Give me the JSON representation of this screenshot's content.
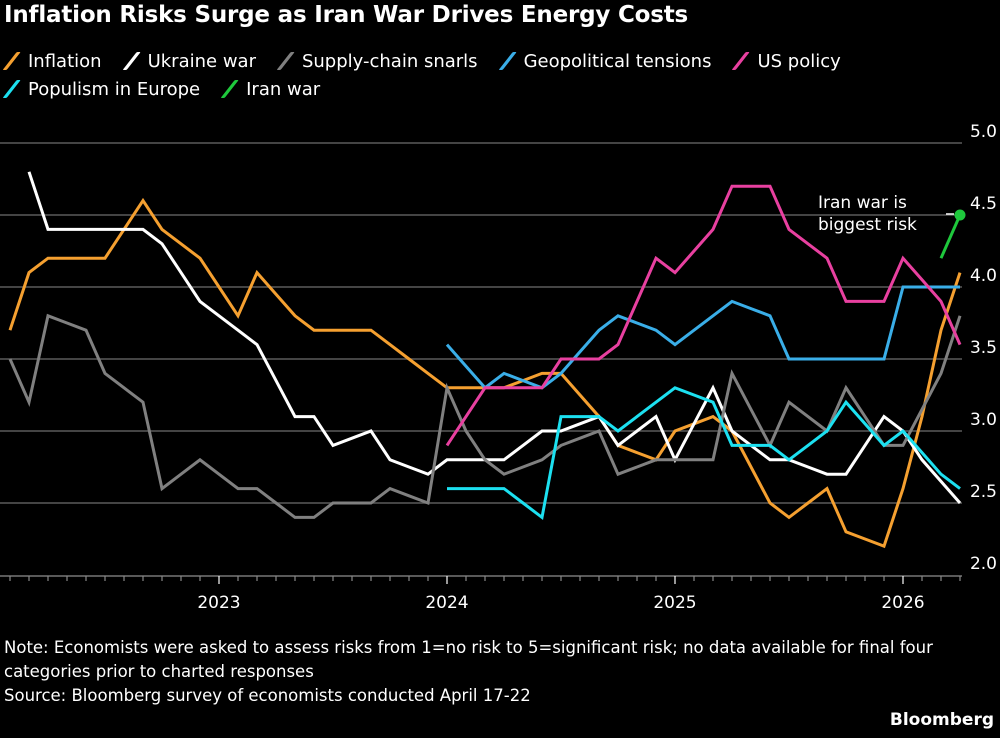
{
  "title": "Inflation Risks Surge as Iran War Drives Energy Costs",
  "note": "Note: Economists were asked to assess risks from 1=no risk to 5=significant risk; no data available for final four categories prior to charted responses",
  "source": "Source: Bloomberg survey of economists conducted April 17-22",
  "brand": "Bloomberg",
  "chart_data": {
    "type": "line",
    "title": "Inflation Risks Surge as Iran War Drives Energy Costs",
    "xlabel": "",
    "ylabel": "",
    "x_start": "2022-02",
    "x_end": "2026-04",
    "x_frequency": "monthly",
    "x_tick_labels": [
      "2023",
      "2024",
      "2025",
      "2026"
    ],
    "y_tick_labels": [
      "2.0",
      "2.5",
      "3.0",
      "3.5",
      "4.0",
      "4.5",
      "5.0"
    ],
    "ylim": [
      2.0,
      5.0
    ],
    "grid": true,
    "y_axis_side": "right",
    "legend_placement": "top",
    "annotation": {
      "text_line1": "Iran war is",
      "text_line2": "biggest risk"
    },
    "series": [
      {
        "name": "Inflation",
        "color": "#f5a030",
        "values": [
          3.7,
          4.1,
          4.2,
          4.2,
          4.2,
          4.2,
          4.4,
          4.6,
          4.4,
          4.3,
          4.2,
          4.0,
          3.8,
          4.1,
          3.95,
          3.8,
          3.7,
          3.7,
          3.7,
          3.7,
          3.6,
          3.5,
          3.4,
          3.3,
          3.3,
          3.3,
          3.3,
          3.35,
          3.4,
          3.4,
          3.25,
          3.1,
          2.9,
          2.85,
          2.8,
          3.0,
          3.05,
          3.1,
          3.0,
          2.75,
          2.5,
          2.4,
          2.5,
          2.6,
          2.3,
          2.25,
          2.2,
          2.6,
          3.1,
          3.7,
          4.1
        ]
      },
      {
        "name": "Ukraine war",
        "color": "#ffffff",
        "values": [
          null,
          4.8,
          4.4,
          4.4,
          4.4,
          4.4,
          4.4,
          4.4,
          4.3,
          4.1,
          3.9,
          3.8,
          3.7,
          3.6,
          3.35,
          3.1,
          3.1,
          2.9,
          2.95,
          3.0,
          2.8,
          2.75,
          2.7,
          2.8,
          2.8,
          2.8,
          2.8,
          2.9,
          3.0,
          3.0,
          3.05,
          3.1,
          2.9,
          3.0,
          3.1,
          2.8,
          3.05,
          3.3,
          3.0,
          2.9,
          2.8,
          2.8,
          2.75,
          2.7,
          2.7,
          2.9,
          3.1,
          3.0,
          2.8,
          2.65,
          2.5
        ]
      },
      {
        "name": "Supply-chain snarls",
        "color": "#808080",
        "values": [
          3.5,
          3.2,
          3.8,
          3.75,
          3.7,
          3.4,
          3.3,
          3.2,
          2.6,
          2.7,
          2.8,
          2.7,
          2.6,
          2.6,
          2.5,
          2.4,
          2.4,
          2.5,
          2.5,
          2.5,
          2.6,
          2.55,
          2.5,
          3.3,
          3.0,
          2.8,
          2.7,
          2.75,
          2.8,
          2.9,
          2.95,
          3.0,
          2.7,
          2.75,
          2.8,
          2.8,
          2.8,
          2.8,
          3.4,
          3.15,
          2.9,
          3.2,
          3.1,
          3.0,
          3.3,
          3.1,
          2.9,
          2.9,
          3.15,
          3.4,
          3.8
        ]
      },
      {
        "name": "Geopolitical tensions",
        "color": "#3aaee8",
        "values": [
          null,
          null,
          null,
          null,
          null,
          null,
          null,
          null,
          null,
          null,
          null,
          null,
          null,
          null,
          null,
          null,
          null,
          null,
          null,
          null,
          null,
          null,
          null,
          3.6,
          3.45,
          3.3,
          3.4,
          3.35,
          3.3,
          3.4,
          3.55,
          3.7,
          3.8,
          3.75,
          3.7,
          3.6,
          3.7,
          3.8,
          3.9,
          3.85,
          3.8,
          3.5,
          3.5,
          3.5,
          3.5,
          3.5,
          3.5,
          4.0,
          4.0,
          4.0,
          4.0
        ]
      },
      {
        "name": "US policy",
        "color": "#e840a0",
        "values": [
          null,
          null,
          null,
          null,
          null,
          null,
          null,
          null,
          null,
          null,
          null,
          null,
          null,
          null,
          null,
          null,
          null,
          null,
          null,
          null,
          null,
          null,
          null,
          2.9,
          3.1,
          3.3,
          3.3,
          3.3,
          3.3,
          3.5,
          3.5,
          3.5,
          3.6,
          3.9,
          4.2,
          4.1,
          4.25,
          4.4,
          4.7,
          4.7,
          4.7,
          4.4,
          4.3,
          4.2,
          3.9,
          3.9,
          3.9,
          4.2,
          4.05,
          3.9,
          3.6
        ]
      },
      {
        "name": "Populism in Europe",
        "color": "#1ce0f0",
        "values": [
          null,
          null,
          null,
          null,
          null,
          null,
          null,
          null,
          null,
          null,
          null,
          null,
          null,
          null,
          null,
          null,
          null,
          null,
          null,
          null,
          null,
          null,
          null,
          2.6,
          2.6,
          2.6,
          2.6,
          2.5,
          2.4,
          3.1,
          3.1,
          3.1,
          3.0,
          3.1,
          3.2,
          3.3,
          3.25,
          3.2,
          2.9,
          2.9,
          2.9,
          2.8,
          2.9,
          3.0,
          3.2,
          3.05,
          2.9,
          3.0,
          2.85,
          2.7,
          2.6
        ]
      },
      {
        "name": "Iran war",
        "color": "#1ec83c",
        "values": [
          null,
          null,
          null,
          null,
          null,
          null,
          null,
          null,
          null,
          null,
          null,
          null,
          null,
          null,
          null,
          null,
          null,
          null,
          null,
          null,
          null,
          null,
          null,
          null,
          null,
          null,
          null,
          null,
          null,
          null,
          null,
          null,
          null,
          null,
          null,
          null,
          null,
          null,
          null,
          null,
          null,
          null,
          null,
          null,
          null,
          null,
          null,
          null,
          null,
          4.2,
          4.5
        ]
      }
    ]
  }
}
